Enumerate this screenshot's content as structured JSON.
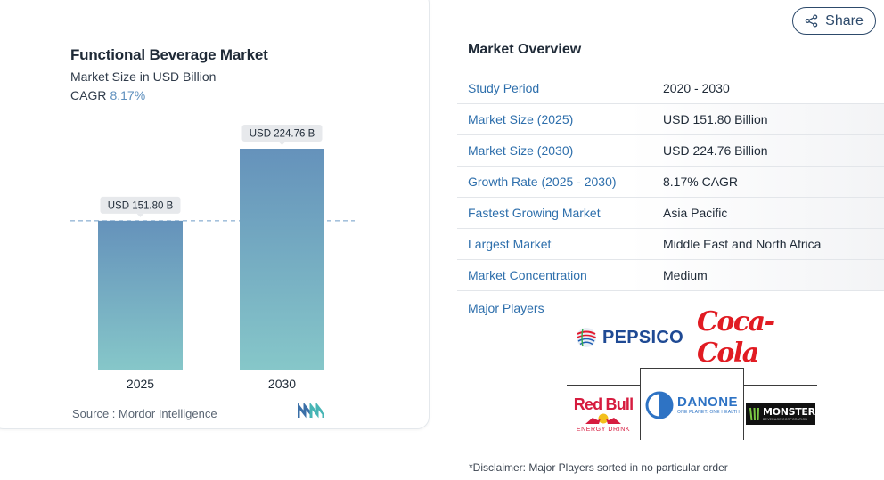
{
  "share": {
    "label": "Share",
    "icon": "share-icon"
  },
  "chart": {
    "title": "Functional Beverage Market",
    "subtitle": "Market Size in USD Billion",
    "cagr_label": "CAGR",
    "cagr_value": "8.17%",
    "source": "Source :  Mordor Intelligence",
    "source_logo": "mordor-intelligence-logo"
  },
  "chart_data": {
    "type": "bar",
    "categories": [
      "2025",
      "2030"
    ],
    "values": [
      151.8,
      224.76
    ],
    "data_labels": [
      "USD 151.80 B",
      "USD 224.76 B"
    ],
    "title": "Functional Beverage Market",
    "subtitle": "Market Size in USD Billion",
    "ylim": [
      0,
      250
    ],
    "grid": false,
    "reference_line": "dashed line at the 2025 value",
    "colors": {
      "bar_top": "#6592bb",
      "bar_bottom": "#86c7c9"
    }
  },
  "overview": {
    "heading": "Market Overview",
    "rows": [
      {
        "label": "Study Period",
        "value": "2020 - 2030"
      },
      {
        "label": "Market Size (2025)",
        "value": "USD 151.80 Billion"
      },
      {
        "label": "Market Size (2030)",
        "value": "USD 224.76 Billion"
      },
      {
        "label": "Growth Rate (2025 - 2030)",
        "value": "8.17% CAGR"
      },
      {
        "label": "Fastest Growing Market",
        "value": "Asia Pacific"
      },
      {
        "label": "Largest Market",
        "value": "Middle East and North Africa"
      },
      {
        "label": "Market Concentration",
        "value": "Medium"
      }
    ]
  },
  "players": {
    "label": "Major Players",
    "logos": {
      "pepsico": "PEPSICO",
      "cocacola": "Coca-Cola",
      "redbull": "Red Bull",
      "redbull_sub": "ENERGY DRINK",
      "danone": "DANONE",
      "danone_sub": "ONE PLANET. ONE HEALTH",
      "monster": "MONSTER",
      "monster_sub": "BEVERAGE CORPORATION"
    }
  },
  "disclaimer": "*Disclaimer: Major Players sorted in no particular order",
  "colors": {
    "link": "#2e6fac",
    "accent": "#5d8fbd",
    "share_border": "#2d4a6b"
  }
}
